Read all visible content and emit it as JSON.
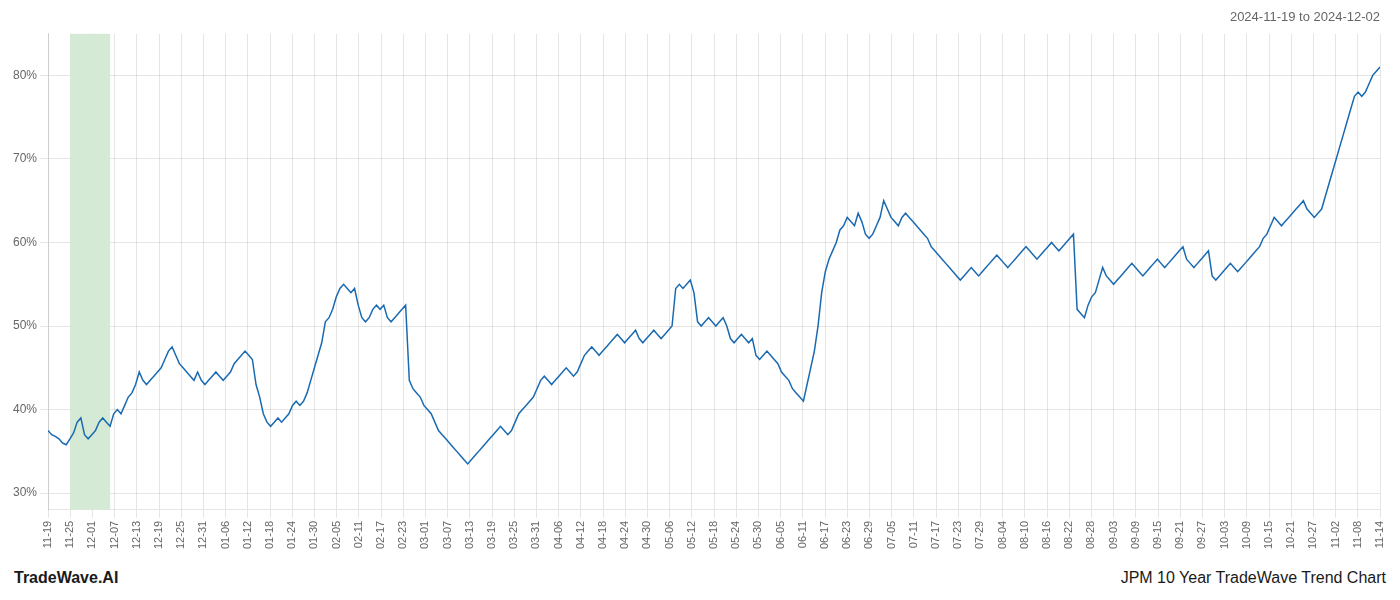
{
  "chart_data": {
    "type": "line",
    "annotations": [
      "2024-11-19 to 2024-12-02",
      "TradeWave.AI",
      "JPM 10 Year TradeWave Trend Chart"
    ],
    "color": "#1a6ab1",
    "grid": true,
    "highlight": {
      "start": 1.0,
      "end": 2.8,
      "color": "#d4ead4"
    },
    "xlim": [
      0,
      60
    ],
    "xticks": [
      {
        "value": 0,
        "label": "11-19"
      },
      {
        "value": 1,
        "label": "11-25"
      },
      {
        "value": 2,
        "label": "12-01"
      },
      {
        "value": 3,
        "label": "12-07"
      },
      {
        "value": 4,
        "label": "12-13"
      },
      {
        "value": 5,
        "label": "12-19"
      },
      {
        "value": 6,
        "label": "12-25"
      },
      {
        "value": 7,
        "label": "12-31"
      },
      {
        "value": 8,
        "label": "01-06"
      },
      {
        "value": 9,
        "label": "01-12"
      },
      {
        "value": 10,
        "label": "01-18"
      },
      {
        "value": 11,
        "label": "01-24"
      },
      {
        "value": 12,
        "label": "01-30"
      },
      {
        "value": 13,
        "label": "02-05"
      },
      {
        "value": 14,
        "label": "02-11"
      },
      {
        "value": 15,
        "label": "02-17"
      },
      {
        "value": 16,
        "label": "02-23"
      },
      {
        "value": 17,
        "label": "03-01"
      },
      {
        "value": 18,
        "label": "03-07"
      },
      {
        "value": 19,
        "label": "03-13"
      },
      {
        "value": 20,
        "label": "03-19"
      },
      {
        "value": 21,
        "label": "03-25"
      },
      {
        "value": 22,
        "label": "03-31"
      },
      {
        "value": 23,
        "label": "04-06"
      },
      {
        "value": 24,
        "label": "04-12"
      },
      {
        "value": 25,
        "label": "04-18"
      },
      {
        "value": 26,
        "label": "04-24"
      },
      {
        "value": 27,
        "label": "04-30"
      },
      {
        "value": 28,
        "label": "05-06"
      },
      {
        "value": 29,
        "label": "05-12"
      },
      {
        "value": 30,
        "label": "05-18"
      },
      {
        "value": 31,
        "label": "05-24"
      },
      {
        "value": 32,
        "label": "05-30"
      },
      {
        "value": 33,
        "label": "06-05"
      },
      {
        "value": 34,
        "label": "06-11"
      },
      {
        "value": 35,
        "label": "06-17"
      },
      {
        "value": 36,
        "label": "06-23"
      },
      {
        "value": 37,
        "label": "06-29"
      },
      {
        "value": 38,
        "label": "07-05"
      },
      {
        "value": 39,
        "label": "07-11"
      },
      {
        "value": 40,
        "label": "07-17"
      },
      {
        "value": 41,
        "label": "07-23"
      },
      {
        "value": 42,
        "label": "07-29"
      },
      {
        "value": 43,
        "label": "08-04"
      },
      {
        "value": 44,
        "label": "08-10"
      },
      {
        "value": 45,
        "label": "08-16"
      },
      {
        "value": 46,
        "label": "08-22"
      },
      {
        "value": 47,
        "label": "08-28"
      },
      {
        "value": 48,
        "label": "09-03"
      },
      {
        "value": 49,
        "label": "09-09"
      },
      {
        "value": 50,
        "label": "09-15"
      },
      {
        "value": 51,
        "label": "09-21"
      },
      {
        "value": 52,
        "label": "09-27"
      },
      {
        "value": 53,
        "label": "10-03"
      },
      {
        "value": 54,
        "label": "10-09"
      },
      {
        "value": 55,
        "label": "10-15"
      },
      {
        "value": 56,
        "label": "10-21"
      },
      {
        "value": 57,
        "label": "10-27"
      },
      {
        "value": 58,
        "label": "11-02"
      },
      {
        "value": 59,
        "label": "11-08"
      },
      {
        "value": 60,
        "label": "11-14"
      }
    ],
    "ylim": [
      28,
      85
    ],
    "yticks": [
      {
        "value": 30,
        "label": "30%"
      },
      {
        "value": 40,
        "label": "40%"
      },
      {
        "value": 50,
        "label": "50%"
      },
      {
        "value": 60,
        "label": "60%"
      },
      {
        "value": 70,
        "label": "70%"
      },
      {
        "value": 80,
        "label": "80%"
      }
    ],
    "values": [
      37.5,
      37.0,
      36.8,
      36.5,
      36.0,
      35.8,
      36.5,
      37.2,
      38.5,
      39.0,
      37.0,
      36.5,
      37.0,
      37.5,
      38.5,
      39.0,
      38.5,
      38.0,
      39.5,
      40.0,
      39.5,
      40.5,
      41.5,
      42.0,
      43.0,
      44.5,
      43.5,
      43.0,
      43.5,
      44.0,
      44.5,
      45.0,
      46.0,
      47.0,
      47.5,
      46.5,
      45.5,
      45.0,
      44.5,
      44.0,
      43.5,
      44.5,
      43.5,
      43.0,
      43.5,
      44.0,
      44.5,
      44.0,
      43.5,
      44.0,
      44.5,
      45.5,
      46.0,
      46.5,
      47.0,
      46.5,
      46.0,
      43.0,
      41.5,
      39.5,
      38.5,
      38.0,
      38.5,
      39.0,
      38.5,
      39.0,
      39.5,
      40.5,
      41.0,
      40.5,
      41.0,
      42.0,
      43.5,
      45.0,
      46.5,
      48.0,
      50.5,
      51.0,
      52.0,
      53.5,
      54.5,
      55.0,
      54.5,
      54.0,
      54.5,
      52.5,
      51.0,
      50.5,
      51.0,
      52.0,
      52.5,
      52.0,
      52.5,
      51.0,
      50.5,
      51.0,
      51.5,
      52.0,
      52.5,
      43.5,
      42.5,
      42.0,
      41.5,
      40.5,
      40.0,
      39.5,
      38.5,
      37.5,
      37.0,
      36.5,
      36.0,
      35.5,
      35.0,
      34.5,
      34.0,
      33.5,
      34.0,
      34.5,
      35.0,
      35.5,
      36.0,
      36.5,
      37.0,
      37.5,
      38.0,
      37.5,
      37.0,
      37.5,
      38.5,
      39.5,
      40.0,
      40.5,
      41.0,
      41.5,
      42.5,
      43.5,
      44.0,
      43.5,
      43.0,
      43.5,
      44.0,
      44.5,
      45.0,
      44.5,
      44.0,
      44.5,
      45.5,
      46.5,
      47.0,
      47.5,
      47.0,
      46.5,
      47.0,
      47.5,
      48.0,
      48.5,
      49.0,
      48.5,
      48.0,
      48.5,
      49.0,
      49.5,
      48.5,
      48.0,
      48.5,
      49.0,
      49.5,
      49.0,
      48.5,
      49.0,
      49.5,
      50.0,
      54.5,
      55.0,
      54.5,
      55.0,
      55.5,
      54.0,
      50.5,
      50.0,
      50.5,
      51.0,
      50.5,
      50.0,
      50.5,
      51.0,
      50.0,
      48.5,
      48.0,
      48.5,
      49.0,
      48.5,
      48.0,
      48.5,
      46.5,
      46.0,
      46.5,
      47.0,
      46.5,
      46.0,
      45.5,
      44.5,
      44.0,
      43.5,
      42.5,
      42.0,
      41.5,
      41.0,
      43.0,
      45.0,
      47.0,
      50.0,
      54.0,
      56.5,
      58.0,
      59.0,
      60.0,
      61.5,
      62.0,
      63.0,
      62.5,
      62.0,
      63.5,
      62.5,
      61.0,
      60.5,
      61.0,
      62.0,
      63.0,
      65.0,
      64.0,
      63.0,
      62.5,
      62.0,
      63.0,
      63.5,
      63.0,
      62.5,
      62.0,
      61.5,
      61.0,
      60.5,
      59.5,
      59.0,
      58.5,
      58.0,
      57.5,
      57.0,
      56.5,
      56.0,
      55.5,
      56.0,
      56.5,
      57.0,
      56.5,
      56.0,
      56.5,
      57.0,
      57.5,
      58.0,
      58.5,
      58.0,
      57.5,
      57.0,
      57.5,
      58.0,
      58.5,
      59.0,
      59.5,
      59.0,
      58.5,
      58.0,
      58.5,
      59.0,
      59.5,
      60.0,
      59.5,
      59.0,
      59.5,
      60.0,
      60.5,
      61.0,
      52.0,
      51.5,
      51.0,
      52.5,
      53.5,
      54.0,
      55.5,
      57.0,
      56.0,
      55.5,
      55.0,
      55.5,
      56.0,
      56.5,
      57.0,
      57.5,
      57.0,
      56.5,
      56.0,
      56.5,
      57.0,
      57.5,
      58.0,
      57.5,
      57.0,
      57.5,
      58.0,
      58.5,
      59.0,
      59.5,
      58.0,
      57.5,
      57.0,
      57.5,
      58.0,
      58.5,
      59.0,
      56.0,
      55.5,
      56.0,
      56.5,
      57.0,
      57.5,
      57.0,
      56.5,
      57.0,
      57.5,
      58.0,
      58.5,
      59.0,
      59.5,
      60.5,
      61.0,
      62.0,
      63.0,
      62.5,
      62.0,
      62.5,
      63.0,
      63.5,
      64.0,
      64.5,
      65.0,
      64.0,
      63.5,
      63.0,
      63.5,
      64.0,
      65.5,
      67.0,
      68.5,
      70.0,
      71.5,
      73.0,
      74.5,
      76.0,
      77.5,
      78.0,
      77.5,
      78.0,
      79.0,
      80.0,
      80.5,
      81.0
    ]
  }
}
